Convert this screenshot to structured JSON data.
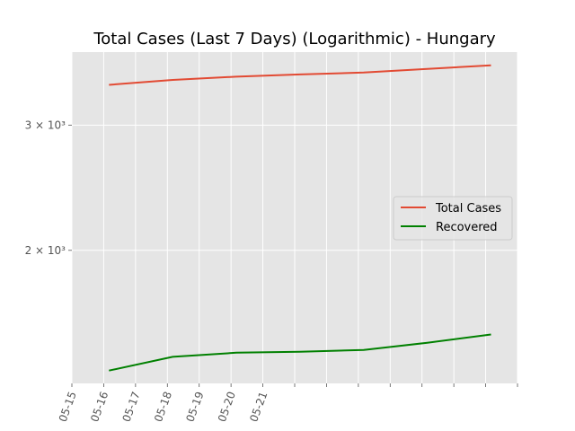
{
  "chart_data": {
    "type": "line",
    "title": "Total Cases (Last 7 Days) (Logarithmic) - Hungary",
    "xlabel": "",
    "ylabel": "",
    "yscale": "log",
    "grid": true,
    "legend_position": "center-right",
    "x": [
      "2020-05-15",
      "2020-05-16",
      "2020-05-17",
      "2020-05-18",
      "2020-05-19",
      "2020-05-20",
      "2020-05-21"
    ],
    "xlim": [
      "2020-05-14 12:00",
      "2020-05-21 12:00"
    ],
    "ylim": [
      1300,
      3800
    ],
    "x_tick_labels": [
      "05-15",
      "05-16",
      "05-17",
      "05-18",
      "05-19",
      "05-20",
      "05-21"
    ],
    "y_ticks": [
      {
        "value": 2000,
        "label": "2 × 10³"
      },
      {
        "value": 3000,
        "label": "3 × 10³"
      }
    ],
    "series": [
      {
        "name": "Total Cases",
        "color": "#e24a33",
        "values": [
          3417,
          3473,
          3509,
          3535,
          3556,
          3598,
          3641
        ]
      },
      {
        "name": "Recovered",
        "color": "#008000",
        "values": [
          1355,
          1417,
          1436,
          1440,
          1449,
          1483,
          1523
        ]
      }
    ]
  }
}
